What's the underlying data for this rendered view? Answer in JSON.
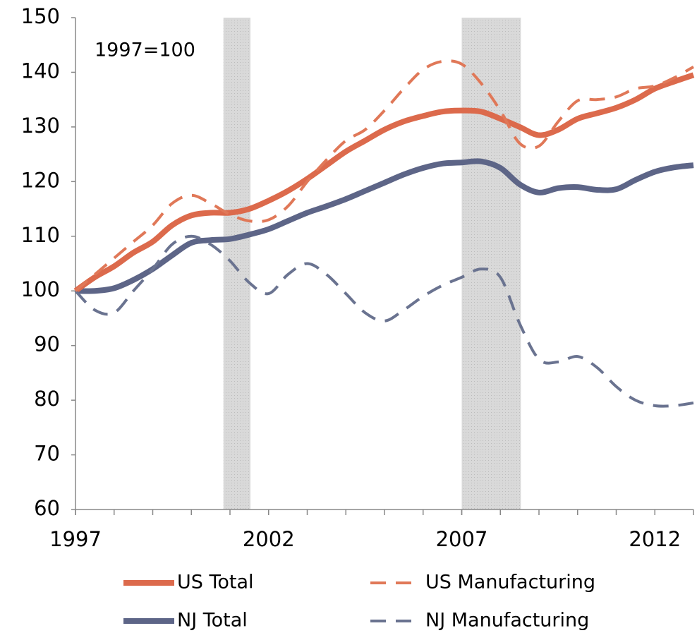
{
  "chart_data": {
    "type": "line",
    "annotation": "1997=100",
    "x": [
      1997,
      1997.5,
      1998,
      1998.5,
      1999,
      1999.5,
      2000,
      2000.5,
      2001,
      2001.5,
      2002,
      2002.5,
      2003,
      2003.5,
      2004,
      2004.5,
      2005,
      2005.5,
      2006,
      2006.5,
      2007,
      2007.5,
      2008,
      2008.5,
      2009,
      2009.5,
      2010,
      2010.5,
      2011,
      2011.5,
      2012,
      2012.5,
      2013
    ],
    "series": [
      {
        "name": "US Total",
        "color": "#dc6a4c",
        "dashed": false,
        "values": [
          100,
          102.5,
          104.5,
          107,
          109,
          112,
          113.8,
          114.3,
          114.3,
          115,
          116.5,
          118.3,
          120.5,
          123,
          125.5,
          127.5,
          129.5,
          131,
          132,
          132.8,
          133,
          132.8,
          131.5,
          130,
          128.5,
          129.5,
          131.5,
          132.5,
          133.5,
          135,
          137,
          138.3,
          139.5
        ]
      },
      {
        "name": "US Manufacturing",
        "color": "#e07858",
        "dashed": true,
        "values": [
          100,
          103,
          106,
          109,
          112,
          116,
          117.5,
          116,
          114,
          112.8,
          113,
          115.5,
          120,
          124,
          127.5,
          129.5,
          133,
          137,
          140.5,
          142,
          141.5,
          138,
          133,
          127,
          126.5,
          131,
          134.8,
          135,
          135.5,
          137,
          137.5,
          139,
          141
        ]
      },
      {
        "name": "NJ Total",
        "color": "#5d6587",
        "dashed": false,
        "values": [
          100,
          100,
          100.5,
          102,
          104,
          106.5,
          108.8,
          109.3,
          109.5,
          110.3,
          111.3,
          112.8,
          114.3,
          115.5,
          116.8,
          118.3,
          119.8,
          121.3,
          122.5,
          123.3,
          123.5,
          123.7,
          122.5,
          119.5,
          118,
          118.8,
          119,
          118.5,
          118.6,
          120.3,
          121.8,
          122.6,
          123
        ]
      },
      {
        "name": "NJ Manufacturing",
        "color": "#6a7390",
        "dashed": true,
        "values": [
          100,
          96.5,
          96,
          100,
          104,
          108.5,
          110,
          108.5,
          105.5,
          101.5,
          99.5,
          103,
          105,
          103,
          99.5,
          96,
          94.5,
          96.5,
          99,
          101,
          102.5,
          104,
          102.5,
          94,
          87.5,
          87,
          88,
          86,
          82.5,
          80,
          79,
          79,
          79.5
        ]
      }
    ],
    "shaded_periods": [
      [
        2000.83,
        2001.53
      ],
      [
        2007.0,
        2008.53
      ]
    ],
    "shade_color": "#d9d9d9",
    "xlim": [
      1997,
      2013
    ],
    "xticks": [
      1997,
      2002,
      2007,
      2012
    ],
    "xminorticks": [
      1997,
      1998,
      1999,
      2000,
      2001,
      2002,
      2003,
      2004,
      2005,
      2006,
      2007,
      2008,
      2009,
      2010,
      2011,
      2012,
      2013
    ],
    "ylim": [
      60,
      150
    ],
    "yticks": [
      60,
      70,
      80,
      90,
      100,
      110,
      120,
      130,
      140,
      150
    ],
    "grid": false
  }
}
